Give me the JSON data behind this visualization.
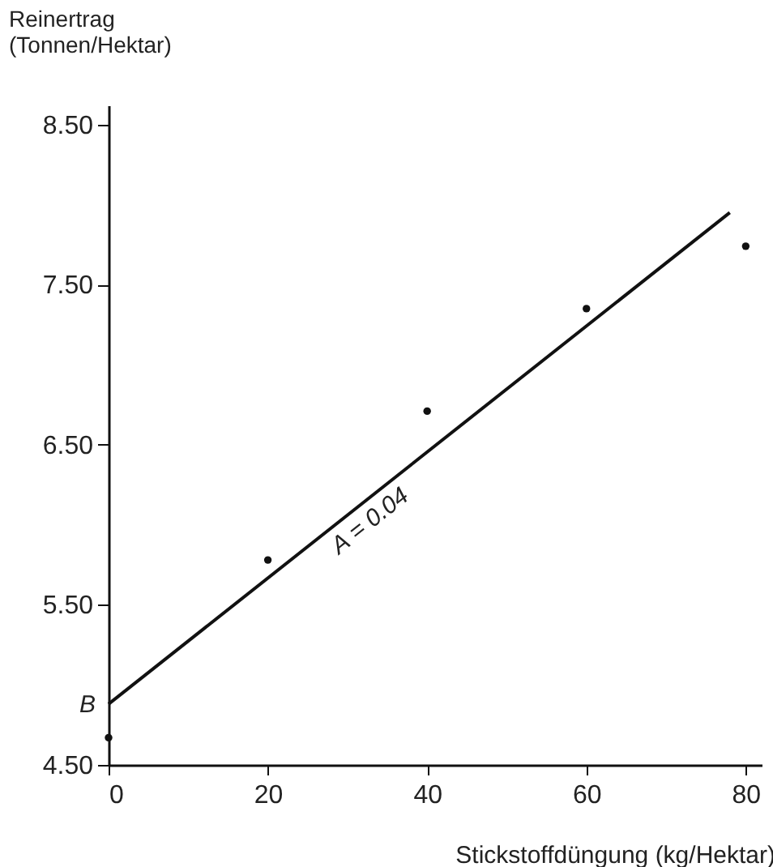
{
  "chart_data": {
    "type": "scatter",
    "xlabel": "Stickstoffdüngung (kg/Hektar)",
    "ylabel": "Reinertrag\n(Tonnen/Hektar)",
    "x": [
      0,
      20,
      40,
      60,
      80
    ],
    "series": [
      {
        "color": "#111111",
        "marker": "circle",
        "values": [
          4.67,
          5.78,
          6.71,
          7.35,
          7.74
        ]
      },
      {
        "type": "line",
        "color": "#111111",
        "x": [
          0,
          78
        ],
        "values": [
          4.88,
          7.95
        ]
      }
    ],
    "xlim": [
      0,
      82
    ],
    "ylim": [
      4.5,
      8.62
    ],
    "xticks": [
      0,
      20,
      40,
      60,
      80
    ],
    "yticks": [
      {
        "value": 4.5,
        "label": "4.50"
      },
      {
        "value": 5.5,
        "label": "5.50"
      },
      {
        "value": 6.5,
        "label": "6.50"
      },
      {
        "value": 7.5,
        "label": "7.50"
      },
      {
        "value": 8.5,
        "label": "8.50"
      }
    ],
    "annotations": [
      {
        "text": "A = 0.04",
        "x": 30,
        "y": 6.06
      },
      {
        "text": "B",
        "x": 0,
        "y": 4.88
      }
    ]
  }
}
